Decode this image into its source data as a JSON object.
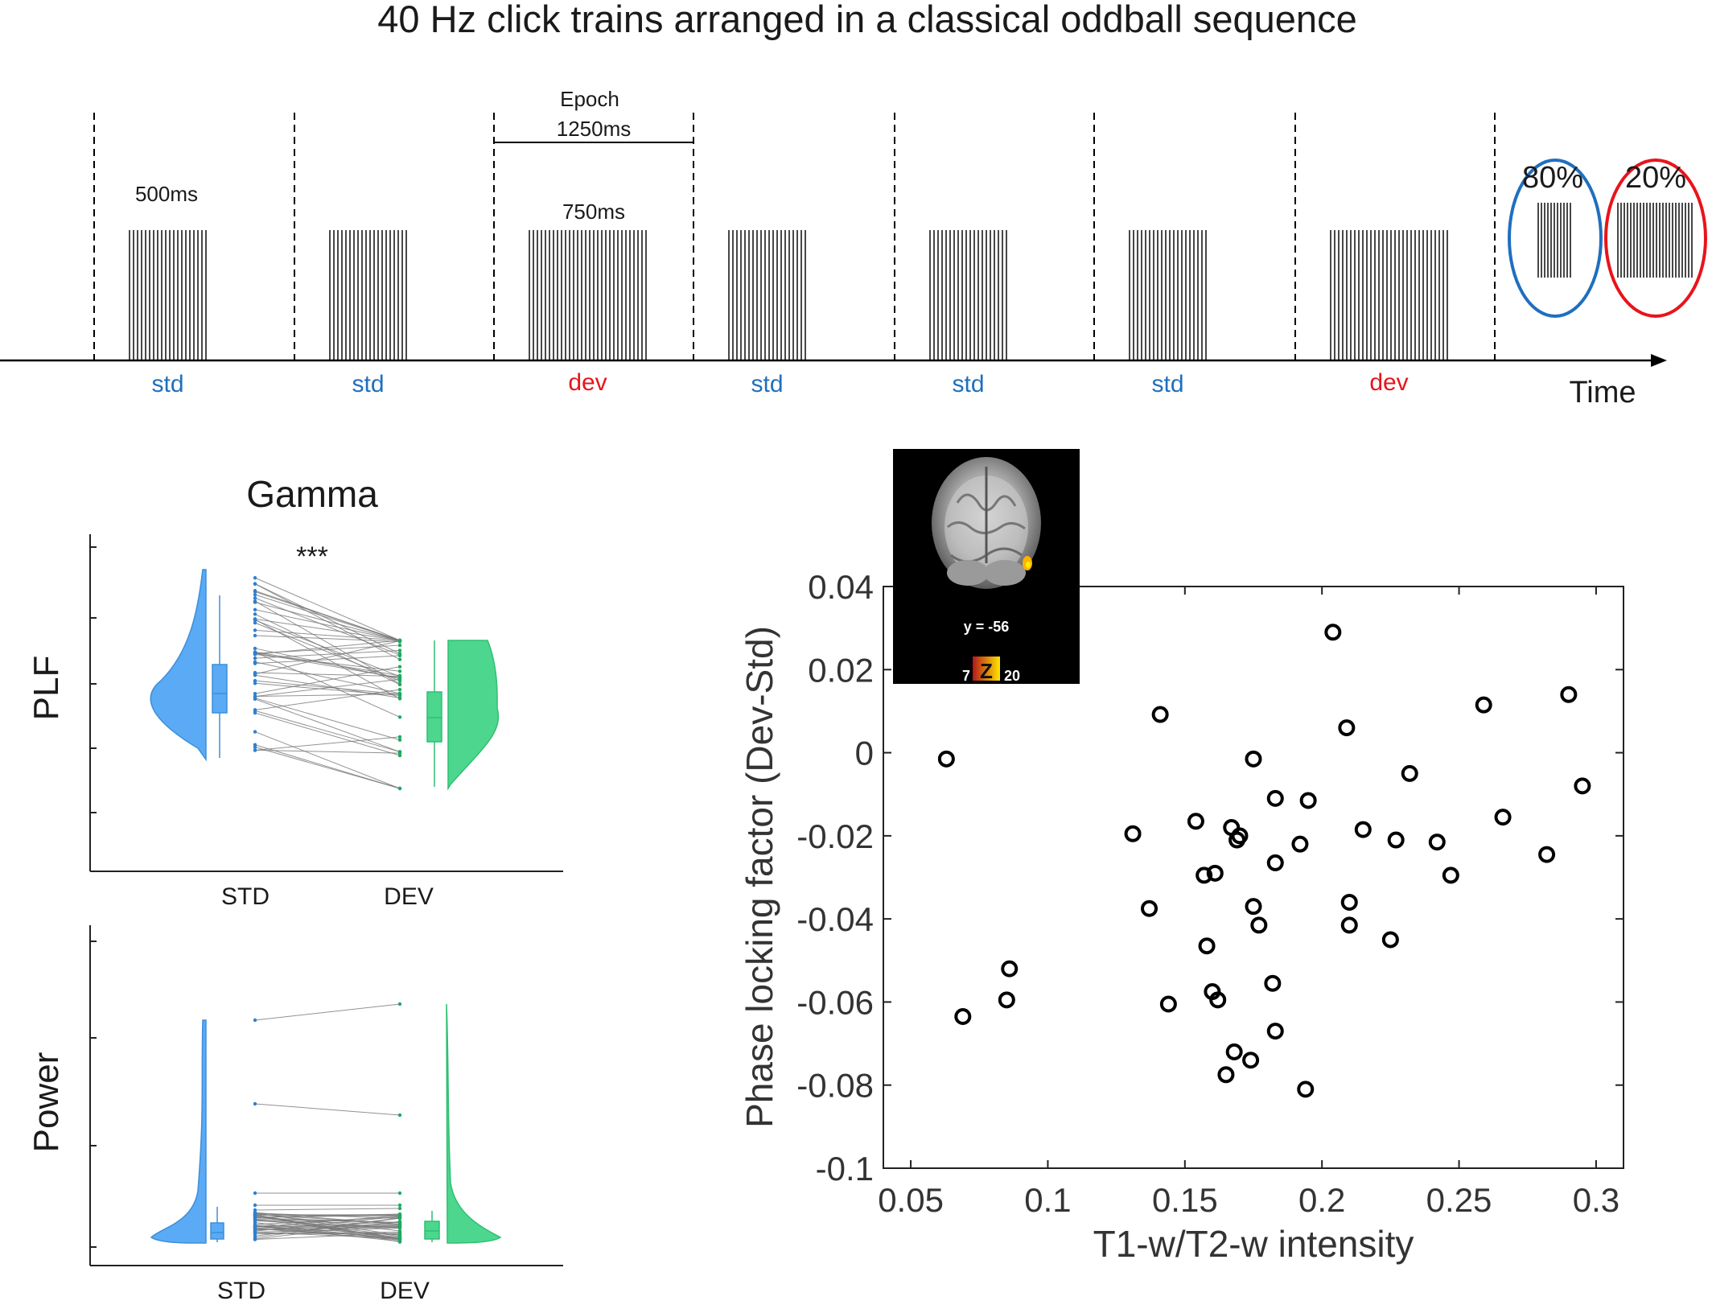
{
  "header": {
    "title": "40 Hz click trains arranged in a classical oddball sequence"
  },
  "sequence": {
    "trials": [
      {
        "label": "std",
        "kind": "std"
      },
      {
        "label": "std",
        "kind": "std"
      },
      {
        "label": "dev",
        "kind": "dev"
      },
      {
        "label": "std",
        "kind": "std"
      },
      {
        "label": "std",
        "kind": "std"
      },
      {
        "label": "std",
        "kind": "std"
      },
      {
        "label": "dev",
        "kind": "dev"
      }
    ],
    "std_duration_label": "500ms",
    "dev_duration_label": "750ms",
    "epoch_label_line1": "Epoch",
    "epoch_label_line2": "1250ms",
    "time_label": "Time",
    "std_probability": "80%",
    "dev_probability": "20%",
    "colors": {
      "std": "#1f6fbf",
      "dev": "#e8141b",
      "std_ellipse": "#1f6fbf",
      "dev_ellipse": "#e8141b"
    }
  },
  "raincloud": {
    "title": "Gamma",
    "significance": "***",
    "colors": {
      "std": "#5aaaf5",
      "dev": "#4dd68e"
    },
    "plf_panel": {
      "ylabel": "PLF",
      "categories": [
        "STD",
        "DEV"
      ]
    },
    "power_panel": {
      "ylabel": "Power",
      "categories": [
        "STD",
        "DEV"
      ]
    }
  },
  "inset": {
    "coordinate_label": "y = -56",
    "colorbar_min": "7",
    "colorbar_letter": "Z",
    "colorbar_max": "20"
  },
  "chart_data": [
    {
      "type": "scatter",
      "title": "",
      "xlabel": "T1-w/T2-w intensity",
      "ylabel": "Phase locking factor (Dev-Std)",
      "xlim": [
        0.04,
        0.31
      ],
      "ylim": [
        -0.1,
        0.04
      ],
      "xticks": [
        0.05,
        0.1,
        0.15,
        0.2,
        0.25,
        0.3
      ],
      "xtick_labels": [
        "0.05",
        "0.1",
        "0.15",
        "0.2",
        "0.25",
        "0.3"
      ],
      "yticks": [
        0.04,
        0.02,
        0,
        -0.02,
        -0.04,
        -0.06,
        -0.08,
        -0.1
      ],
      "ytick_labels": [
        "0.04",
        "0.02",
        "0",
        "-0.02",
        "-0.04",
        "-0.06",
        "-0.08",
        "-0.1"
      ],
      "marker_color": "#000000",
      "points": [
        {
          "x": 0.063,
          "y": -0.0015
        },
        {
          "x": 0.069,
          "y": -0.0635
        },
        {
          "x": 0.085,
          "y": -0.0595
        },
        {
          "x": 0.086,
          "y": -0.052
        },
        {
          "x": 0.131,
          "y": -0.0195
        },
        {
          "x": 0.137,
          "y": -0.0375
        },
        {
          "x": 0.141,
          "y": 0.0092
        },
        {
          "x": 0.144,
          "y": -0.0605
        },
        {
          "x": 0.154,
          "y": -0.0165
        },
        {
          "x": 0.157,
          "y": -0.0295
        },
        {
          "x": 0.158,
          "y": -0.0465
        },
        {
          "x": 0.16,
          "y": -0.0575
        },
        {
          "x": 0.161,
          "y": -0.029
        },
        {
          "x": 0.162,
          "y": -0.0595
        },
        {
          "x": 0.165,
          "y": -0.0775
        },
        {
          "x": 0.167,
          "y": -0.018
        },
        {
          "x": 0.168,
          "y": -0.072
        },
        {
          "x": 0.169,
          "y": -0.021
        },
        {
          "x": 0.17,
          "y": -0.02
        },
        {
          "x": 0.174,
          "y": -0.074
        },
        {
          "x": 0.175,
          "y": -0.037
        },
        {
          "x": 0.175,
          "y": -0.0015
        },
        {
          "x": 0.177,
          "y": -0.0415
        },
        {
          "x": 0.182,
          "y": -0.0555
        },
        {
          "x": 0.183,
          "y": -0.011
        },
        {
          "x": 0.183,
          "y": -0.0265
        },
        {
          "x": 0.183,
          "y": -0.067
        },
        {
          "x": 0.192,
          "y": -0.022
        },
        {
          "x": 0.194,
          "y": -0.081
        },
        {
          "x": 0.195,
          "y": -0.0115
        },
        {
          "x": 0.204,
          "y": 0.029
        },
        {
          "x": 0.209,
          "y": 0.006
        },
        {
          "x": 0.21,
          "y": -0.036
        },
        {
          "x": 0.21,
          "y": -0.0415
        },
        {
          "x": 0.215,
          "y": -0.0185
        },
        {
          "x": 0.225,
          "y": -0.045
        },
        {
          "x": 0.227,
          "y": -0.021
        },
        {
          "x": 0.232,
          "y": -0.005
        },
        {
          "x": 0.242,
          "y": -0.0215
        },
        {
          "x": 0.247,
          "y": -0.0295
        },
        {
          "x": 0.259,
          "y": 0.0115
        },
        {
          "x": 0.266,
          "y": -0.0155
        },
        {
          "x": 0.282,
          "y": -0.0245
        },
        {
          "x": 0.29,
          "y": 0.014
        },
        {
          "x": 0.295,
          "y": -0.008
        }
      ]
    }
  ]
}
